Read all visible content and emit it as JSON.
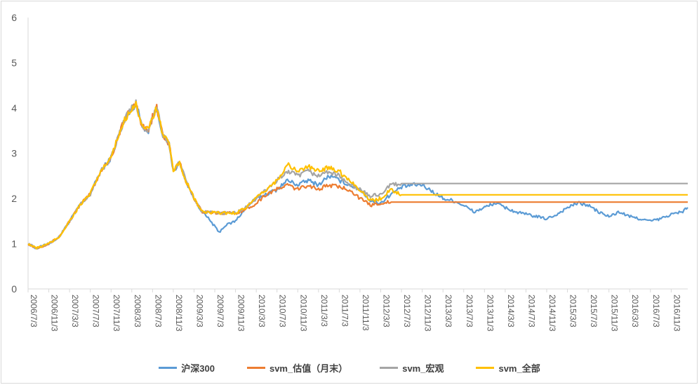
{
  "chart_data": {
    "type": "line",
    "title": "",
    "xlabel": "",
    "ylabel": "",
    "ylim": [
      0,
      6
    ],
    "yticks": [
      0,
      1,
      2,
      3,
      4,
      5,
      6
    ],
    "grid": false,
    "legend_position": "bottom",
    "x_tick_labels": [
      "2006/7/3",
      "2006/11/3",
      "2007/3/3",
      "2007/7/3",
      "2007/11/3",
      "2008/3/3",
      "2008/7/3",
      "2008/11/3",
      "2009/3/3",
      "2009/7/3",
      "2009/11/3",
      "2010/3/3",
      "2010/7/3",
      "2010/11/3",
      "2011/3/3",
      "2011/7/3",
      "2011/11/3",
      "2012/3/3",
      "2012/7/3",
      "2012/11/3",
      "2013/3/3",
      "2013/7/3",
      "2013/11/3",
      "2014/3/3",
      "2014/7/3",
      "2014/11/3",
      "2015/3/3",
      "2015/7/3",
      "2015/11/3",
      "2016/3/3",
      "2016/7/3",
      "2016/11/3"
    ],
    "x_range": [
      0,
      31.8
    ],
    "series": [
      {
        "name": "沪深300",
        "color": "#5B9BD5",
        "points": [
          [
            0,
            1.0
          ],
          [
            0.4,
            0.9
          ],
          [
            1.0,
            1.0
          ],
          [
            1.5,
            1.15
          ],
          [
            2.0,
            1.5
          ],
          [
            2.5,
            1.85
          ],
          [
            3.0,
            2.1
          ],
          [
            3.5,
            2.6
          ],
          [
            4.0,
            2.9
          ],
          [
            4.3,
            3.3
          ],
          [
            4.6,
            3.7
          ],
          [
            5.0,
            4.0
          ],
          [
            5.2,
            4.1
          ],
          [
            5.5,
            3.6
          ],
          [
            5.8,
            3.5
          ],
          [
            6.0,
            3.8
          ],
          [
            6.2,
            4.0
          ],
          [
            6.5,
            3.4
          ],
          [
            6.8,
            3.2
          ],
          [
            7.0,
            2.6
          ],
          [
            7.3,
            2.8
          ],
          [
            7.6,
            2.4
          ],
          [
            8.0,
            2.0
          ],
          [
            8.4,
            1.7
          ],
          [
            8.8,
            1.5
          ],
          [
            9.2,
            1.25
          ],
          [
            9.5,
            1.4
          ],
          [
            10.0,
            1.5
          ],
          [
            10.5,
            1.8
          ],
          [
            11.0,
            2.0
          ],
          [
            11.5,
            2.1
          ],
          [
            12.0,
            2.2
          ],
          [
            12.5,
            2.4
          ],
          [
            13.0,
            2.3
          ],
          [
            13.5,
            2.4
          ],
          [
            14.0,
            2.3
          ],
          [
            14.5,
            2.5
          ],
          [
            15.0,
            2.4
          ],
          [
            15.5,
            2.3
          ],
          [
            16.0,
            2.2
          ],
          [
            16.5,
            1.95
          ],
          [
            17.0,
            1.9
          ],
          [
            17.5,
            2.1
          ],
          [
            18.0,
            2.25
          ],
          [
            18.5,
            2.3
          ],
          [
            19.0,
            2.3
          ],
          [
            19.5,
            2.15
          ],
          [
            20.0,
            2.0
          ],
          [
            20.5,
            1.95
          ],
          [
            21.0,
            1.85
          ],
          [
            21.5,
            1.7
          ],
          [
            22.0,
            1.8
          ],
          [
            22.5,
            1.9
          ],
          [
            23.0,
            1.8
          ],
          [
            23.5,
            1.7
          ],
          [
            24.0,
            1.65
          ],
          [
            24.5,
            1.6
          ],
          [
            25.0,
            1.55
          ],
          [
            25.5,
            1.65
          ],
          [
            26.0,
            1.8
          ],
          [
            26.5,
            1.9
          ],
          [
            27.0,
            1.85
          ],
          [
            27.5,
            1.7
          ],
          [
            28.0,
            1.6
          ],
          [
            28.5,
            1.7
          ],
          [
            29.0,
            1.6
          ],
          [
            29.5,
            1.55
          ],
          [
            30.0,
            1.5
          ],
          [
            30.5,
            1.55
          ],
          [
            31.0,
            1.65
          ],
          [
            31.5,
            1.7
          ],
          [
            31.8,
            1.8
          ]
        ]
      },
      {
        "name": "svm_估值（月末）",
        "color": "#ED7D31",
        "points": [
          [
            0,
            1.0
          ],
          [
            0.4,
            0.9
          ],
          [
            1.0,
            1.0
          ],
          [
            1.5,
            1.15
          ],
          [
            2.0,
            1.5
          ],
          [
            2.5,
            1.85
          ],
          [
            3.0,
            2.1
          ],
          [
            3.5,
            2.6
          ],
          [
            4.0,
            2.9
          ],
          [
            4.3,
            3.3
          ],
          [
            4.6,
            3.7
          ],
          [
            5.0,
            4.0
          ],
          [
            5.2,
            4.1
          ],
          [
            5.5,
            3.6
          ],
          [
            5.8,
            3.5
          ],
          [
            6.0,
            3.8
          ],
          [
            6.2,
            4.0
          ],
          [
            6.5,
            3.4
          ],
          [
            6.8,
            3.2
          ],
          [
            7.0,
            2.6
          ],
          [
            7.3,
            2.8
          ],
          [
            7.6,
            2.4
          ],
          [
            8.0,
            2.0
          ],
          [
            8.4,
            1.7
          ],
          [
            9.0,
            1.68
          ],
          [
            10.0,
            1.68
          ],
          [
            10.5,
            1.75
          ],
          [
            11.0,
            1.9
          ],
          [
            11.5,
            2.1
          ],
          [
            12.0,
            2.2
          ],
          [
            12.5,
            2.3
          ],
          [
            13.0,
            2.2
          ],
          [
            13.5,
            2.3
          ],
          [
            14.0,
            2.2
          ],
          [
            14.5,
            2.3
          ],
          [
            15.0,
            2.25
          ],
          [
            15.5,
            2.2
          ],
          [
            16.0,
            2.0
          ],
          [
            16.5,
            1.85
          ],
          [
            17.0,
            1.9
          ],
          [
            17.5,
            1.92
          ],
          [
            31.8,
            1.92
          ]
        ]
      },
      {
        "name": "svm_宏观",
        "color": "#A5A5A5",
        "points": [
          [
            0,
            1.0
          ],
          [
            0.4,
            0.9
          ],
          [
            1.0,
            1.0
          ],
          [
            1.5,
            1.15
          ],
          [
            2.0,
            1.5
          ],
          [
            2.5,
            1.85
          ],
          [
            3.0,
            2.1
          ],
          [
            3.5,
            2.6
          ],
          [
            4.0,
            2.9
          ],
          [
            4.3,
            3.3
          ],
          [
            4.6,
            3.7
          ],
          [
            5.0,
            4.0
          ],
          [
            5.2,
            4.1
          ],
          [
            5.5,
            3.6
          ],
          [
            5.8,
            3.5
          ],
          [
            6.0,
            3.8
          ],
          [
            6.2,
            4.0
          ],
          [
            6.5,
            3.4
          ],
          [
            6.8,
            3.2
          ],
          [
            7.0,
            2.6
          ],
          [
            7.3,
            2.8
          ],
          [
            7.6,
            2.4
          ],
          [
            8.0,
            2.0
          ],
          [
            8.4,
            1.7
          ],
          [
            9.0,
            1.68
          ],
          [
            10.0,
            1.68
          ],
          [
            10.5,
            1.8
          ],
          [
            11.0,
            2.0
          ],
          [
            11.5,
            2.2
          ],
          [
            12.0,
            2.4
          ],
          [
            12.5,
            2.6
          ],
          [
            13.0,
            2.5
          ],
          [
            13.5,
            2.6
          ],
          [
            14.0,
            2.5
          ],
          [
            14.5,
            2.6
          ],
          [
            15.0,
            2.5
          ],
          [
            15.5,
            2.3
          ],
          [
            16.0,
            2.2
          ],
          [
            16.5,
            2.05
          ],
          [
            17.0,
            2.1
          ],
          [
            17.5,
            2.3
          ],
          [
            18.0,
            2.33
          ],
          [
            31.8,
            2.33
          ]
        ]
      },
      {
        "name": "svm_全部",
        "color": "#FFC000",
        "points": [
          [
            0,
            1.0
          ],
          [
            0.4,
            0.9
          ],
          [
            1.0,
            1.0
          ],
          [
            1.5,
            1.15
          ],
          [
            2.0,
            1.5
          ],
          [
            2.5,
            1.85
          ],
          [
            3.0,
            2.1
          ],
          [
            3.5,
            2.6
          ],
          [
            4.0,
            2.9
          ],
          [
            4.3,
            3.3
          ],
          [
            4.6,
            3.7
          ],
          [
            5.0,
            4.0
          ],
          [
            5.2,
            4.1
          ],
          [
            5.5,
            3.6
          ],
          [
            5.8,
            3.5
          ],
          [
            6.0,
            3.8
          ],
          [
            6.2,
            4.0
          ],
          [
            6.5,
            3.4
          ],
          [
            6.8,
            3.2
          ],
          [
            7.0,
            2.6
          ],
          [
            7.3,
            2.8
          ],
          [
            7.6,
            2.4
          ],
          [
            8.0,
            2.0
          ],
          [
            8.4,
            1.7
          ],
          [
            9.0,
            1.68
          ],
          [
            10.0,
            1.68
          ],
          [
            10.5,
            1.8
          ],
          [
            11.0,
            2.0
          ],
          [
            11.5,
            2.2
          ],
          [
            12.0,
            2.4
          ],
          [
            12.5,
            2.75
          ],
          [
            13.0,
            2.6
          ],
          [
            13.5,
            2.7
          ],
          [
            14.0,
            2.6
          ],
          [
            14.5,
            2.7
          ],
          [
            15.0,
            2.6
          ],
          [
            15.5,
            2.4
          ],
          [
            16.0,
            2.2
          ],
          [
            16.5,
            1.95
          ],
          [
            17.0,
            2.0
          ],
          [
            17.5,
            2.2
          ],
          [
            18.0,
            2.08
          ],
          [
            31.8,
            2.08
          ]
        ]
      }
    ]
  }
}
